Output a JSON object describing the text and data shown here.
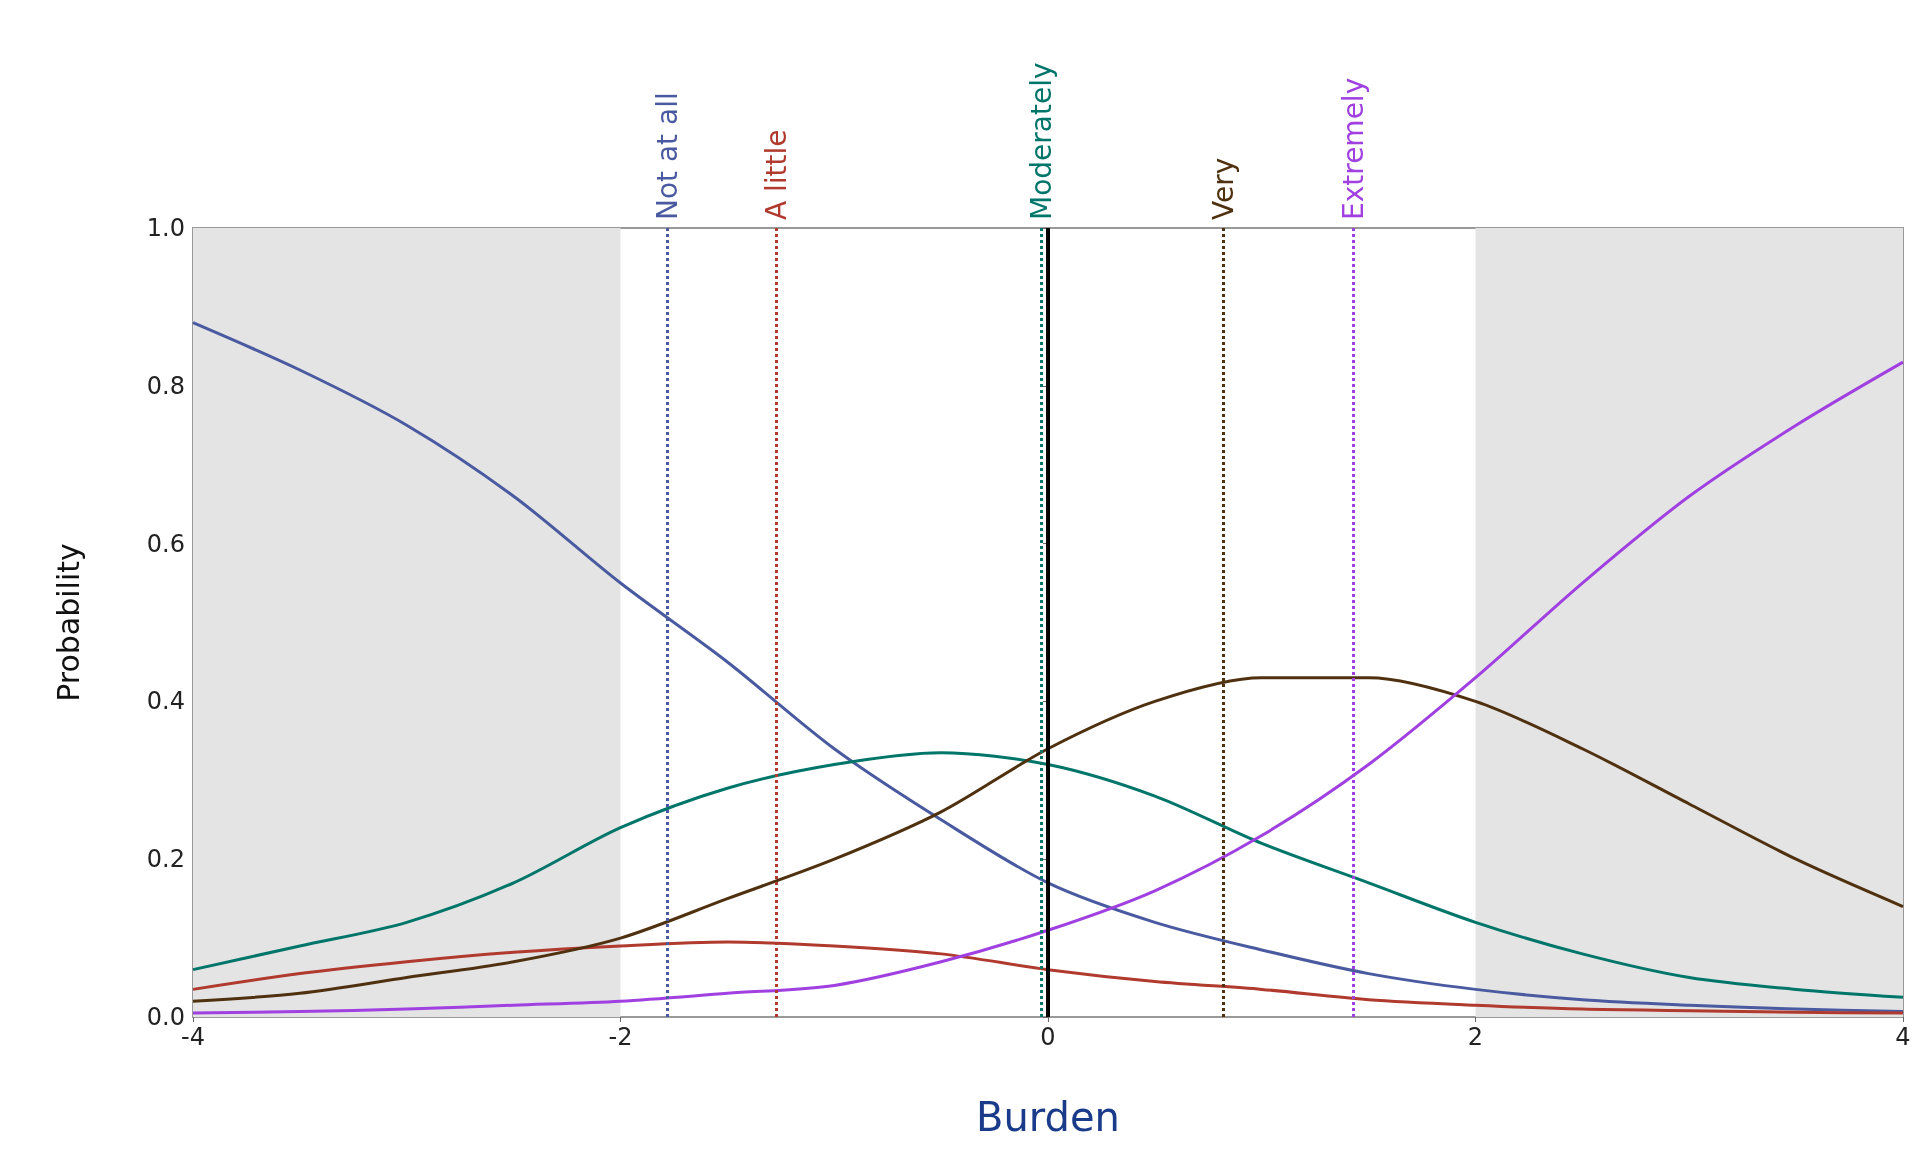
{
  "chart_data": {
    "type": "line",
    "xlabel": "Burden",
    "ylabel": "Probability",
    "xlim": [
      -4,
      4
    ],
    "xticks": [
      -4,
      -2,
      0,
      2,
      4
    ],
    "ylim": [
      0,
      1
    ],
    "yticks": [
      {
        "value": 0,
        "label": "0.0"
      },
      0.2,
      0.4,
      0.6,
      0.8,
      {
        "value": 1,
        "label": "1.0"
      }
    ],
    "grid": false,
    "x": [
      -4,
      -3.5,
      -3,
      -2.5,
      -2,
      -1.5,
      -1,
      -0.5,
      0,
      0.5,
      1,
      1.5,
      2,
      2.5,
      3,
      3.5,
      4
    ],
    "series": [
      {
        "color": "#4a5aa0",
        "values": [
          0.88,
          0.82,
          0.75,
          0.66,
          0.55,
          0.45,
          0.34,
          0.25,
          0.17,
          0.12,
          0.085,
          0.055,
          0.035,
          0.022,
          0.015,
          0.01,
          0.007
        ]
      },
      {
        "color": "#b03a2e",
        "values": [
          0.035,
          0.055,
          0.07,
          0.082,
          0.09,
          0.095,
          0.09,
          0.08,
          0.06,
          0.045,
          0.035,
          0.022,
          0.015,
          0.01,
          0.008,
          0.006,
          0.005
        ]
      },
      {
        "color": "#00756a",
        "values": [
          0.06,
          0.09,
          0.12,
          0.17,
          0.24,
          0.29,
          0.32,
          0.335,
          0.32,
          0.28,
          0.22,
          0.17,
          0.12,
          0.08,
          0.05,
          0.035,
          0.025
        ]
      },
      {
        "color": "#4f3110",
        "values": [
          0.02,
          0.03,
          0.05,
          0.07,
          0.1,
          0.15,
          0.2,
          0.26,
          0.34,
          0.4,
          0.43,
          0.43,
          0.4,
          0.34,
          0.27,
          0.2,
          0.14
        ]
      },
      {
        "color": "#a040e0",
        "values": [
          0.005,
          0.007,
          0.01,
          0.015,
          0.02,
          0.03,
          0.04,
          0.07,
          0.11,
          0.16,
          0.23,
          0.32,
          0.43,
          0.55,
          0.66,
          0.75,
          0.83
        ]
      }
    ],
    "ref_lines": [
      {
        "axis": "x",
        "value": -1.78,
        "label": "Not at all",
        "color": "#4a5aa0",
        "line_style": "dotted"
      },
      {
        "axis": "x",
        "value": -1.27,
        "label": "A little",
        "color": "#b03a2e",
        "line_style": "dotted"
      },
      {
        "axis": "x",
        "value": -0.03,
        "label": "Moderately",
        "color": "#00756a",
        "line_style": "dotted"
      },
      {
        "axis": "x",
        "value": 0.82,
        "label": "Very",
        "color": "#4f3110",
        "line_style": "dotted"
      },
      {
        "axis": "x",
        "value": 1.43,
        "label": "Extremely",
        "color": "#a040e0",
        "line_style": "dotted"
      },
      {
        "axis": "x",
        "value": 0,
        "color": "#000000",
        "line_style": "solid"
      }
    ],
    "bands": [
      {
        "axis": "x",
        "from": -4,
        "to": -2,
        "color": "#e4e4e4"
      },
      {
        "axis": "x",
        "from": 2,
        "to": 4,
        "color": "#e4e4e4"
      }
    ]
  }
}
